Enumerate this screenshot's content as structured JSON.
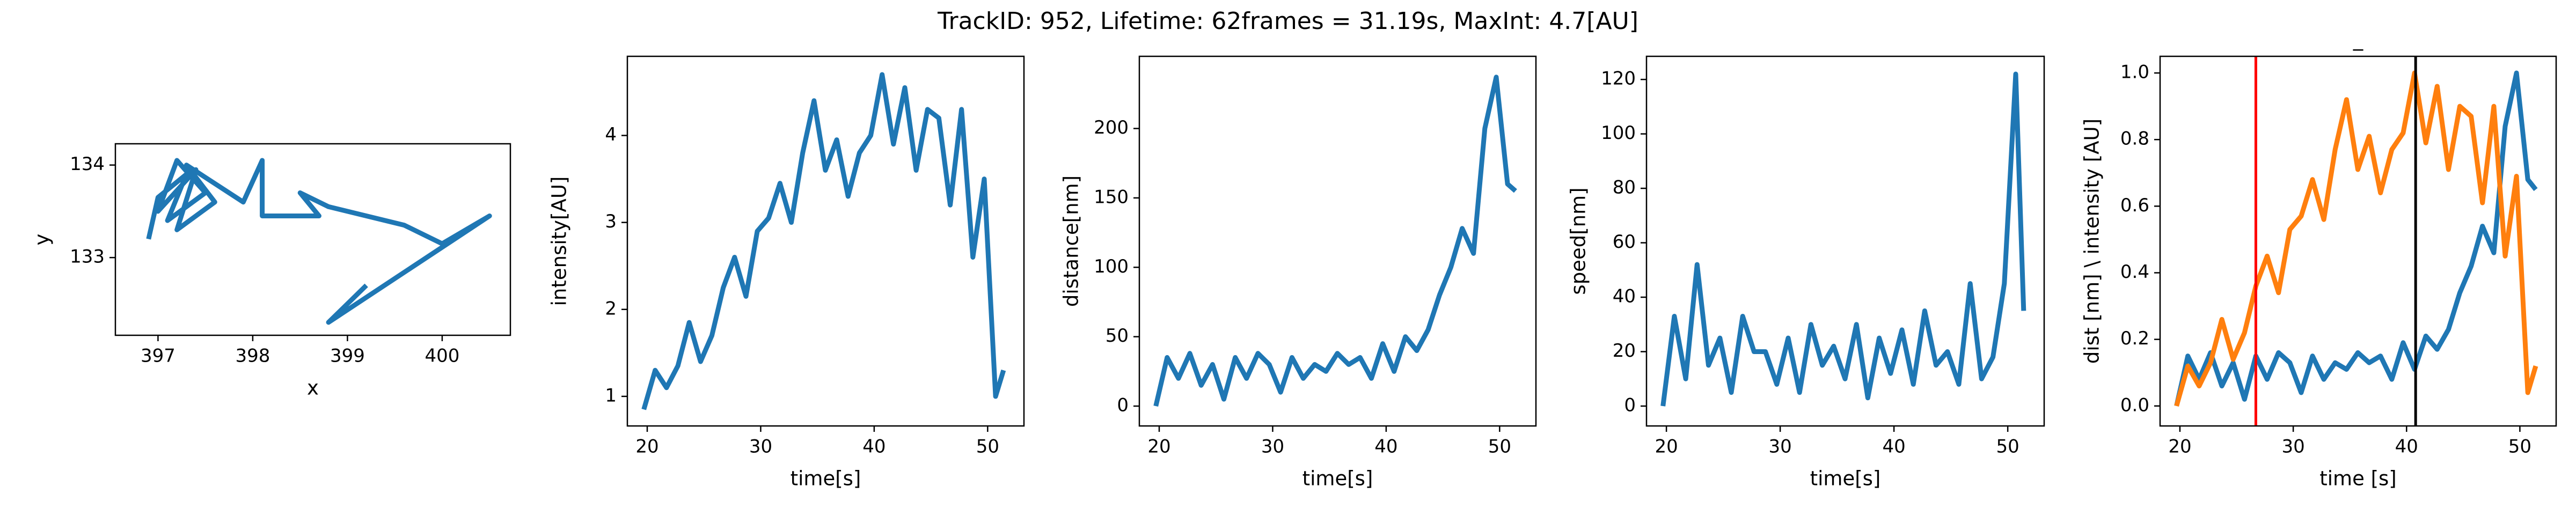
{
  "title": "TrackID: 952, Lifetime: 62frames = 31.19s, MaxInt: 4.7[AU]",
  "chart_data": [
    {
      "type": "line",
      "xlabel": "x",
      "ylabel": "y",
      "x": [
        396.9,
        397.0,
        397.3,
        397.1,
        397.5,
        397.2,
        397.0,
        397.4,
        397.2,
        397.6,
        397.3,
        397.9,
        398.1,
        398.1,
        398.7,
        398.5,
        398.8,
        399.6,
        400.0,
        400.5,
        398.8,
        399.2
      ],
      "series": [
        {
          "color": "#1f77b4",
          "values": [
            133.2,
            133.65,
            133.9,
            133.4,
            133.7,
            134.05,
            133.5,
            133.95,
            133.3,
            133.6,
            134.0,
            133.6,
            134.05,
            133.45,
            133.45,
            133.7,
            133.55,
            133.35,
            133.15,
            133.45,
            132.3,
            132.7
          ]
        }
      ],
      "xlim": [
        396.55,
        400.72
      ],
      "ylim": [
        132.16,
        134.23
      ],
      "xticks": [
        397,
        398,
        399,
        400
      ],
      "yticks": [
        133,
        134
      ]
    },
    {
      "type": "line",
      "xlabel": "time[s]",
      "ylabel": "intensity[AU]",
      "x": [
        19.7,
        20.7,
        21.7,
        22.7,
        23.7,
        24.7,
        25.7,
        26.7,
        27.7,
        28.7,
        29.7,
        30.7,
        31.7,
        32.7,
        33.7,
        34.7,
        35.7,
        36.7,
        37.7,
        38.7,
        39.7,
        40.7,
        41.7,
        42.7,
        43.7,
        44.7,
        45.7,
        46.7,
        47.7,
        48.7,
        49.7,
        50.7,
        51.4
      ],
      "series": [
        {
          "color": "#1f77b4",
          "values": [
            0.85,
            1.3,
            1.1,
            1.35,
            1.85,
            1.4,
            1.7,
            2.25,
            2.6,
            2.15,
            2.9,
            3.05,
            3.45,
            3.0,
            3.8,
            4.4,
            3.6,
            3.95,
            3.3,
            3.8,
            4.0,
            4.7,
            3.9,
            4.55,
            3.6,
            4.3,
            4.2,
            3.2,
            4.3,
            2.6,
            3.5,
            1.0,
            1.3
          ]
        }
      ],
      "xlim": [
        18.25,
        53.2
      ],
      "ylim": [
        0.66,
        4.91
      ],
      "xticks": [
        20,
        30,
        40,
        50
      ],
      "yticks": [
        1,
        2,
        3,
        4
      ]
    },
    {
      "type": "line",
      "xlabel": "time[s]",
      "ylabel": "distance[nm]",
      "x": [
        19.7,
        20.7,
        21.7,
        22.7,
        23.7,
        24.7,
        25.7,
        26.7,
        27.7,
        28.7,
        29.7,
        30.7,
        31.7,
        32.7,
        33.7,
        34.7,
        35.7,
        36.7,
        37.7,
        38.7,
        39.7,
        40.7,
        41.7,
        42.7,
        43.7,
        44.7,
        45.7,
        46.7,
        47.7,
        48.7,
        49.7,
        50.7,
        51.4
      ],
      "series": [
        {
          "color": "#1f77b4",
          "values": [
            0,
            35,
            20,
            38,
            15,
            30,
            5,
            35,
            20,
            38,
            30,
            10,
            35,
            20,
            30,
            25,
            38,
            30,
            35,
            20,
            45,
            25,
            50,
            40,
            55,
            80,
            100,
            128,
            110,
            200,
            237,
            160,
            155
          ]
        }
      ],
      "xlim": [
        18.25,
        53.2
      ],
      "ylim": [
        -14.3,
        252
      ],
      "xticks": [
        20,
        30,
        40,
        50
      ],
      "yticks": [
        0,
        50,
        100,
        150,
        200
      ]
    },
    {
      "type": "line",
      "xlabel": "time[s]",
      "ylabel": "speed[nm]",
      "x": [
        19.7,
        20.7,
        21.7,
        22.7,
        23.7,
        24.7,
        25.7,
        26.7,
        27.7,
        28.7,
        29.7,
        30.7,
        31.7,
        32.7,
        33.7,
        34.7,
        35.7,
        36.7,
        37.7,
        38.7,
        39.7,
        40.7,
        41.7,
        42.7,
        43.7,
        44.7,
        45.7,
        46.7,
        47.7,
        48.7,
        49.7,
        50.7,
        51.4
      ],
      "series": [
        {
          "color": "#1f77b4",
          "values": [
            0,
            33,
            10,
            52,
            15,
            25,
            5,
            33,
            20,
            20,
            8,
            25,
            5,
            30,
            15,
            22,
            10,
            30,
            3,
            25,
            12,
            28,
            8,
            35,
            15,
            20,
            8,
            45,
            10,
            18,
            45,
            122,
            35
          ]
        }
      ],
      "xlim": [
        18.25,
        53.2
      ],
      "ylim": [
        -7.3,
        128.5
      ],
      "xticks": [
        20,
        30,
        40,
        50
      ],
      "yticks": [
        0,
        20,
        40,
        60,
        80,
        100,
        120
      ]
    },
    {
      "type": "line",
      "title": "_",
      "xlabel": "time [s]",
      "ylabel": "dist [nm] \\ intensity [AU]",
      "x": [
        19.7,
        20.7,
        21.7,
        22.7,
        23.7,
        24.7,
        25.7,
        26.7,
        27.7,
        28.7,
        29.7,
        30.7,
        31.7,
        32.7,
        33.7,
        34.7,
        35.7,
        36.7,
        37.7,
        38.7,
        39.7,
        40.7,
        41.7,
        42.7,
        43.7,
        44.7,
        45.7,
        46.7,
        47.7,
        48.7,
        49.7,
        50.7,
        51.4
      ],
      "series": [
        {
          "color": "#1f77b4",
          "values": [
            0,
            0.15,
            0.08,
            0.16,
            0.06,
            0.13,
            0.02,
            0.15,
            0.08,
            0.16,
            0.13,
            0.04,
            0.15,
            0.08,
            0.13,
            0.11,
            0.16,
            0.13,
            0.15,
            0.08,
            0.19,
            0.11,
            0.21,
            0.17,
            0.23,
            0.34,
            0.42,
            0.54,
            0.46,
            0.84,
            1.0,
            0.68,
            0.65
          ]
        },
        {
          "color": "#ff7f0e",
          "values": [
            0,
            0.12,
            0.06,
            0.13,
            0.26,
            0.14,
            0.22,
            0.36,
            0.45,
            0.34,
            0.53,
            0.57,
            0.68,
            0.56,
            0.77,
            0.92,
            0.71,
            0.81,
            0.64,
            0.77,
            0.82,
            1.0,
            0.79,
            0.96,
            0.71,
            0.9,
            0.87,
            0.61,
            0.9,
            0.45,
            0.69,
            0.04,
            0.12
          ]
        }
      ],
      "vlines": [
        {
          "x": 26.7,
          "color": "#ff0000"
        },
        {
          "x": 40.8,
          "color": "#000000"
        }
      ],
      "xlim": [
        18.25,
        53.2
      ],
      "ylim": [
        -0.06,
        1.05
      ],
      "xticks": [
        20,
        30,
        40,
        50
      ],
      "yticks": [
        {
          "value": 0,
          "label": "0.0"
        },
        {
          "value": 0.2,
          "label": "0.2"
        },
        {
          "value": 0.4,
          "label": "0.4"
        },
        {
          "value": 0.6,
          "label": "0.6"
        },
        {
          "value": 0.8,
          "label": "0.8"
        },
        {
          "value": 1,
          "label": "1.0"
        }
      ]
    }
  ]
}
